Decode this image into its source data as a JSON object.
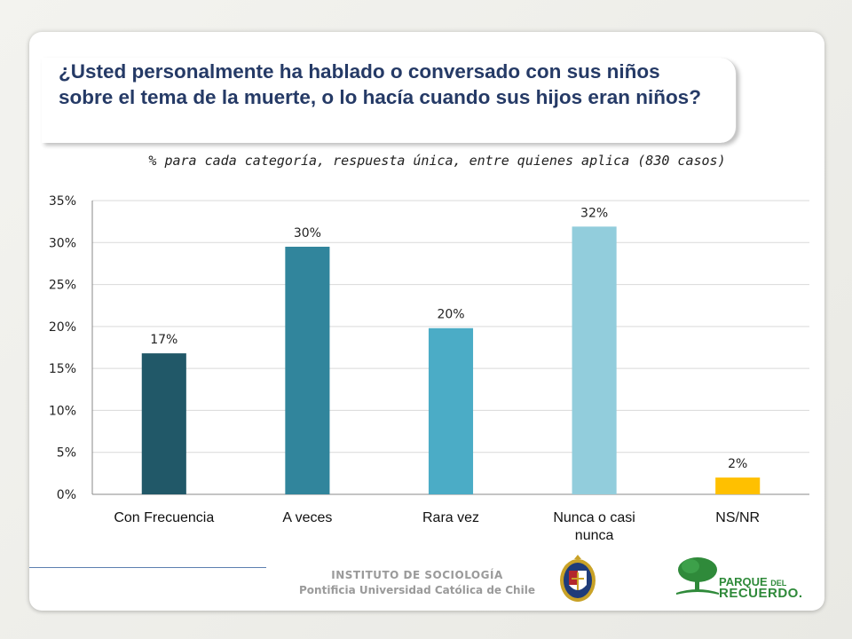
{
  "title": "¿Usted personalmente ha hablado o conversado con sus niños sobre el tema de la muerte, o lo hacía cuando sus hijos eran niños?",
  "subtitle": "% para cada categoría, respuesta única, entre quienes aplica (830 casos)",
  "chart_data": {
    "type": "bar",
    "categories": [
      "Con Frecuencia",
      "A veces",
      "Rara vez",
      "Nunca o casi nunca",
      "NS/NR"
    ],
    "values": [
      16.8,
      29.5,
      19.8,
      31.9,
      2.0
    ],
    "data_labels": [
      "17%",
      "30%",
      "20%",
      "32%",
      "2%"
    ],
    "colors": [
      "#215868",
      "#31859c",
      "#4bacc6",
      "#92cddc",
      "#ffc000"
    ],
    "ylim": [
      0,
      35
    ],
    "yticks": [
      0,
      5,
      10,
      15,
      20,
      25,
      30,
      35
    ],
    "ytick_labels": [
      "0%",
      "5%",
      "10%",
      "15%",
      "20%",
      "25%",
      "30%",
      "35%"
    ],
    "xtick_lines": [
      [
        "Con Frecuencia"
      ],
      [
        "A veces"
      ],
      [
        "Rara vez"
      ],
      [
        "Nunca o casi",
        "nunca"
      ],
      [
        "NS/NR"
      ]
    ],
    "grid": true,
    "legend": "none"
  },
  "footer": {
    "institute_line1": "INSTITUTO DE SOCIOLOGÍA",
    "institute_line2": "Pontificia Universidad Católica de Chile",
    "logo_line1_a": "PARQUE",
    "logo_line1_b": "DEL",
    "logo_line2": "RECUERDO."
  }
}
